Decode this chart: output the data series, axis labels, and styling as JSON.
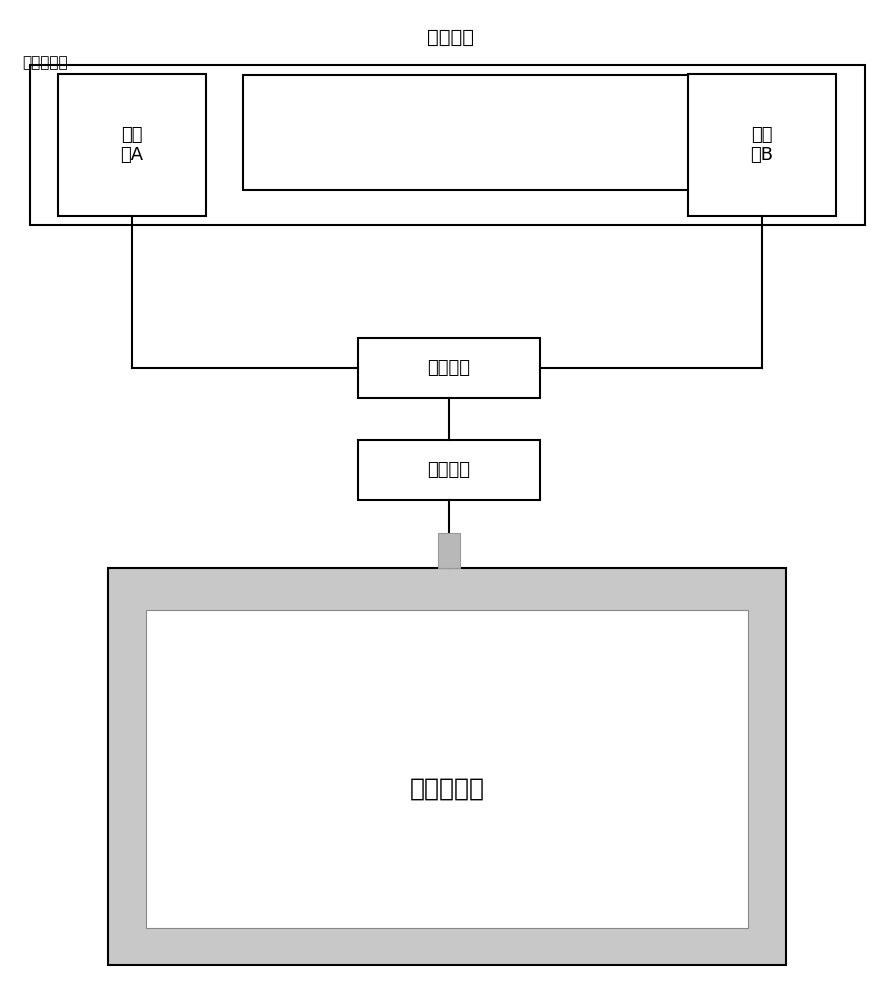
{
  "title_zhongjian": "中间接头",
  "title_guanmu": "管母外护层",
  "label_jinshuA": "金属\n箔A",
  "label_jinshuB": "金属\n箔B",
  "label_xuanpin": "选频放大",
  "label_jiance": "检测阻抗",
  "label_screen": "触摸显示屏",
  "bg_color": "#ffffff",
  "box_edge_color": "#000000",
  "box_fill_color": "#ffffff",
  "screen_outer_fill": "#c8c8c8",
  "screen_inner_fill": "#ffffff",
  "connector_fill": "#b8b8b8",
  "line_color": "#000000",
  "font_size_small": 11,
  "font_size_label": 13,
  "font_size_title": 14,
  "font_size_screen": 18
}
